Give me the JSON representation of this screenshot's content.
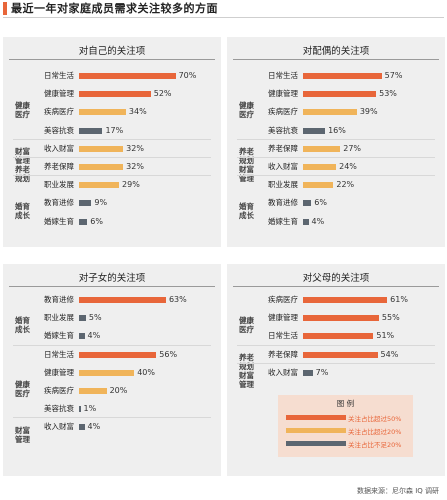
{
  "title": "最近一年对家庭成员需求关注较多的方面",
  "source": "数据来源：尼尔森 IQ 调研",
  "colors": {
    "high": "#e8663a",
    "mid": "#f0b45a",
    "low": "#5c6670",
    "accent": "#e8663a"
  },
  "legend": {
    "title": "图 例",
    "items": [
      {
        "label": "关注占比超过50%",
        "color": "#e8663a"
      },
      {
        "label": "关注占比超过20%",
        "color": "#f0b45a"
      },
      {
        "label": "关注占比不足20%",
        "color": "#5c6670"
      }
    ]
  },
  "chart_data": [
    {
      "type": "bar",
      "title": "对自己的关注项",
      "groups": [
        {
          "name": "健康\n医疗",
          "items": [
            {
              "label": "日常生活",
              "value": 70,
              "display": "70%"
            },
            {
              "label": "健康管理",
              "value": 52,
              "display": "52%"
            },
            {
              "label": "疾病医疗",
              "value": 34,
              "display": "34%"
            },
            {
              "label": "美容抗衰",
              "value": 17,
              "display": "17%"
            }
          ]
        },
        {
          "name": "财富\n管理",
          "items": [
            {
              "label": "收入财富",
              "value": 32,
              "display": "32%"
            }
          ]
        },
        {
          "name": "养老\n规划",
          "items": [
            {
              "label": "养老保障",
              "value": 32,
              "display": "32%"
            }
          ]
        },
        {
          "name": "婚育\n成长",
          "items": [
            {
              "label": "职业发展",
              "value": 29,
              "display": "29%"
            },
            {
              "label": "教育进修",
              "value": 9,
              "display": "9%"
            },
            {
              "label": "婚嫁生育",
              "value": 6,
              "display": "6%"
            }
          ]
        }
      ]
    },
    {
      "type": "bar",
      "title": "对配偶的关注项",
      "groups": [
        {
          "name": "健康\n医疗",
          "items": [
            {
              "label": "日常生活",
              "value": 57,
              "display": "57%"
            },
            {
              "label": "健康管理",
              "value": 53,
              "display": "53%"
            },
            {
              "label": "疾病医疗",
              "value": 39,
              "display": "39%"
            },
            {
              "label": "美容抗衰",
              "value": 16,
              "display": "16%"
            }
          ]
        },
        {
          "name": "养老\n规划",
          "items": [
            {
              "label": "养老保障",
              "value": 27,
              "display": "27%"
            }
          ]
        },
        {
          "name": "财富\n管理",
          "items": [
            {
              "label": "收入财富",
              "value": 24,
              "display": "24%"
            }
          ]
        },
        {
          "name": "婚育\n成长",
          "items": [
            {
              "label": "职业发展",
              "value": 22,
              "display": "22%"
            },
            {
              "label": "教育进修",
              "value": 6,
              "display": "6%"
            },
            {
              "label": "婚嫁生育",
              "value": 4,
              "display": "4%"
            }
          ]
        }
      ]
    },
    {
      "type": "bar",
      "title": "对子女的关注项",
      "groups": [
        {
          "name": "婚育\n成长",
          "items": [
            {
              "label": "教育进修",
              "value": 63,
              "display": "63%"
            },
            {
              "label": "职业发展",
              "value": 5,
              "display": "5%"
            },
            {
              "label": "婚嫁生育",
              "value": 4,
              "display": "4%"
            }
          ]
        },
        {
          "name": "健康\n医疗",
          "items": [
            {
              "label": "日常生活",
              "value": 56,
              "display": "56%"
            },
            {
              "label": "健康管理",
              "value": 40,
              "display": "40%"
            },
            {
              "label": "疾病医疗",
              "value": 20,
              "display": "20%"
            },
            {
              "label": "美容抗衰",
              "value": 1,
              "display": "1%"
            }
          ]
        },
        {
          "name": "财富\n管理",
          "items": [
            {
              "label": "收入财富",
              "value": 4,
              "display": "4%"
            }
          ]
        }
      ]
    },
    {
      "type": "bar",
      "title": "对父母的关注项",
      "groups": [
        {
          "name": "健康\n医疗",
          "items": [
            {
              "label": "疾病医疗",
              "value": 61,
              "display": "61%"
            },
            {
              "label": "健康管理",
              "value": 55,
              "display": "55%"
            },
            {
              "label": "日常生活",
              "value": 51,
              "display": "51%"
            }
          ]
        },
        {
          "name": "养老\n规划",
          "items": [
            {
              "label": "养老保障",
              "value": 54,
              "display": "54%"
            }
          ]
        },
        {
          "name": "财富\n管理",
          "items": [
            {
              "label": "收入财富",
              "value": 7,
              "display": "7%"
            }
          ]
        }
      ]
    }
  ]
}
